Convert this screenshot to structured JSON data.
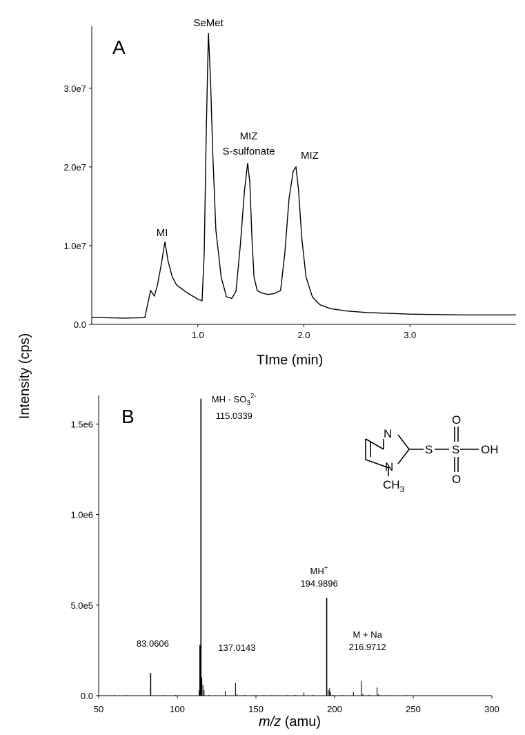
{
  "figure": {
    "ylabel": "Intensity (cps)"
  },
  "chart_data": [
    {
      "type": "line",
      "panel": "A",
      "xlabel": "TIme (min)",
      "xlim": [
        0,
        4.0
      ],
      "ylim": [
        0,
        37000000.0
      ],
      "x_ticks": [
        {
          "value": 1.0,
          "label": "1.0"
        },
        {
          "value": 2.0,
          "label": "2.0"
        },
        {
          "value": 3.0,
          "label": "3.0"
        }
      ],
      "y_ticks": [
        {
          "value": 0,
          "label": "0.0"
        },
        {
          "value": 10000000.0,
          "label": "1.0e7"
        },
        {
          "value": 20000000.0,
          "label": "2.0e7"
        },
        {
          "value": 30000000.0,
          "label": "3.0e7"
        }
      ],
      "series": [
        {
          "x": [
            0.0,
            0.1,
            0.3,
            0.5,
            0.555,
            0.59,
            0.62,
            0.66,
            0.69,
            0.72,
            0.76,
            0.8,
            0.9,
            1.0,
            1.04,
            1.06,
            1.08,
            1.1,
            1.12,
            1.14,
            1.17,
            1.22,
            1.27,
            1.32,
            1.36,
            1.4,
            1.44,
            1.47,
            1.49,
            1.51,
            1.53,
            1.56,
            1.6,
            1.66,
            1.72,
            1.78,
            1.82,
            1.86,
            1.9,
            1.925,
            1.95,
            1.98,
            2.02,
            2.08,
            2.15,
            2.25,
            2.4,
            2.6,
            2.8,
            3.0,
            3.5,
            4.0
          ],
          "y": [
            900000,
            850000,
            800000,
            850000,
            4300000,
            3600000,
            5000000,
            8000000,
            10500000,
            8000000,
            6000000,
            5000000,
            4000000,
            3200000,
            3000000,
            9000000,
            25000000,
            37000000,
            31000000,
            22000000,
            12000000,
            6000000,
            3500000,
            3300000,
            4200000,
            10000000,
            17000000,
            20500000,
            18000000,
            11000000,
            6000000,
            4300000,
            4000000,
            3800000,
            3900000,
            4300000,
            9000000,
            16000000,
            19500000,
            20000000,
            17000000,
            11000000,
            6000000,
            3500000,
            2500000,
            2000000,
            1700000,
            1500000,
            1400000,
            1300000,
            1200000,
            1200000
          ]
        }
      ],
      "annotations": [
        {
          "text": "SeMet",
          "x": 1.1,
          "y": 37000000
        },
        {
          "text": "MI",
          "x": 0.69,
          "y": 10500000
        },
        {
          "text": "MIZ",
          "x": 1.48,
          "y": 20500000
        },
        {
          "text": "S-sulfonate",
          "x": 1.48,
          "y": 20500000
        },
        {
          "text": "MIZ",
          "x": 1.925,
          "y": 20000000
        }
      ]
    },
    {
      "type": "bar",
      "panel": "B",
      "xlabel_italic": "m/z",
      "xlabel_rest": " (amu)",
      "xlim": [
        50,
        300
      ],
      "ylim": [
        0,
        1650000.0
      ],
      "x_ticks": [
        {
          "value": 50,
          "label": "50"
        },
        {
          "value": 100,
          "label": "100"
        },
        {
          "value": 150,
          "label": "150"
        },
        {
          "value": 200,
          "label": "200"
        },
        {
          "value": 250,
          "label": "250"
        },
        {
          "value": 300,
          "label": "300"
        }
      ],
      "y_ticks": [
        {
          "value": 0,
          "label": "0.0"
        },
        {
          "value": 500000,
          "label": "5.0e5"
        },
        {
          "value": 1000000,
          "label": "1.0e6"
        },
        {
          "value": 1500000,
          "label": "1.5e6"
        }
      ],
      "peaks": [
        {
          "mz": 57,
          "i": 3000
        },
        {
          "mz": 60,
          "i": 4000
        },
        {
          "mz": 68,
          "i": 3000
        },
        {
          "mz": 72,
          "i": 2000
        },
        {
          "mz": 83.06,
          "i": 125000
        },
        {
          "mz": 86,
          "i": 2500
        },
        {
          "mz": 92,
          "i": 3000
        },
        {
          "mz": 99,
          "i": 4000
        },
        {
          "mz": 113.9,
          "i": 30000
        },
        {
          "mz": 114.4,
          "i": 280000
        },
        {
          "mz": 115.03,
          "i": 1640000
        },
        {
          "mz": 115.6,
          "i": 100000
        },
        {
          "mz": 116.3,
          "i": 60000
        },
        {
          "mz": 117,
          "i": 30000
        },
        {
          "mz": 120,
          "i": 4000
        },
        {
          "mz": 124,
          "i": 3000
        },
        {
          "mz": 130.5,
          "i": 25000
        },
        {
          "mz": 137.01,
          "i": 70000
        },
        {
          "mz": 138,
          "i": 8000
        },
        {
          "mz": 143,
          "i": 4000
        },
        {
          "mz": 150,
          "i": 3000
        },
        {
          "mz": 155,
          "i": 3000
        },
        {
          "mz": 160,
          "i": 3000
        },
        {
          "mz": 165,
          "i": 2500
        },
        {
          "mz": 170,
          "i": 3000
        },
        {
          "mz": 175,
          "i": 4000
        },
        {
          "mz": 180.5,
          "i": 18000
        },
        {
          "mz": 186,
          "i": 4000
        },
        {
          "mz": 194.99,
          "i": 540000
        },
        {
          "mz": 196,
          "i": 30000
        },
        {
          "mz": 196.8,
          "i": 40000
        },
        {
          "mz": 197.5,
          "i": 20000
        },
        {
          "mz": 199,
          "i": 5000
        },
        {
          "mz": 205,
          "i": 3000
        },
        {
          "mz": 212,
          "i": 20000
        },
        {
          "mz": 216.97,
          "i": 80000
        },
        {
          "mz": 218,
          "i": 10000
        },
        {
          "mz": 222,
          "i": 5000
        },
        {
          "mz": 227,
          "i": 45000
        },
        {
          "mz": 228,
          "i": 8000
        },
        {
          "mz": 233,
          "i": 3000
        },
        {
          "mz": 240,
          "i": 2500
        },
        {
          "mz": 246,
          "i": 3000
        },
        {
          "mz": 255,
          "i": 2000
        },
        {
          "mz": 270,
          "i": 2000
        },
        {
          "mz": 285,
          "i": 2000
        }
      ],
      "annotations": [
        {
          "text": "83.0606",
          "mz": 83.06
        },
        {
          "text": "MH - SO",
          "sub": "3",
          "sup": "2-",
          "mz": 115.03
        },
        {
          "text": "115.0339",
          "mz": 115.03
        },
        {
          "text": "137.0143",
          "mz": 137.01
        },
        {
          "text": "MH",
          "sup": "+",
          "mz": 194.99
        },
        {
          "text": "194.9896",
          "mz": 194.99
        },
        {
          "text": "M + Na",
          "mz": 216.97
        },
        {
          "text": "216.9712",
          "mz": 216.97
        }
      ]
    }
  ],
  "structure": {
    "atoms": [
      "N",
      "N",
      "S",
      "S",
      "O",
      "O",
      "OH",
      "CH",
      "3"
    ]
  }
}
